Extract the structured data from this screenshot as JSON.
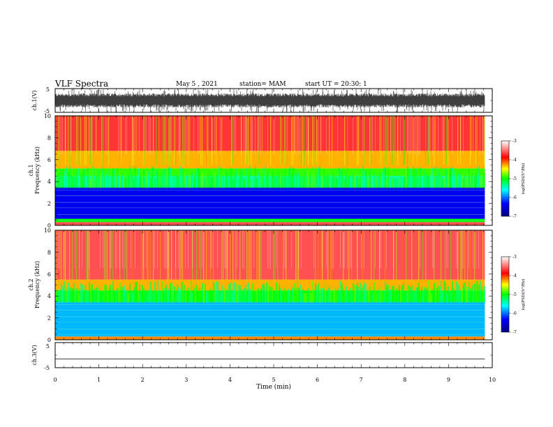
{
  "header": {
    "title": "VLF Spectra",
    "date": "May 5 , 2021",
    "station": "station= MAM",
    "start": "start UT = 20:30: 1"
  },
  "chart_data": [
    {
      "type": "line",
      "ylabel": "ch.1(V)",
      "ylim": [
        -5,
        5
      ],
      "yticks": [
        "5",
        "-5"
      ],
      "description_series": "dense voltage trace, roughly -3 to 3 V with spikes to ±5",
      "signal_range": [
        -3,
        3
      ]
    },
    {
      "type": "heatmap",
      "ylabel_channel": "ch.1",
      "ylabel": "Frequency (kHz)",
      "ylim": [
        0,
        10
      ],
      "yticks": [
        "0",
        "2",
        "4",
        "6",
        "8",
        "10"
      ],
      "colorbar": {
        "label": "log(PSD)(V²/Hz)",
        "ticks": [
          "-3",
          "-4",
          "-5",
          "-6",
          "-7"
        ],
        "range": [
          -7,
          -3
        ],
        "colors": [
          "#000080",
          "#0000ff",
          "#00ffff",
          "#00ff00",
          "#ffff00",
          "#ff0000",
          "#ffffff"
        ]
      },
      "bands": [
        {
          "fmin": 0.0,
          "fmax": 0.3,
          "level": -3.6
        },
        {
          "fmin": 0.3,
          "fmax": 0.6,
          "level": -5.0
        },
        {
          "fmin": 0.6,
          "fmax": 3.5,
          "level": -6.4
        },
        {
          "fmin": 3.5,
          "fmax": 4.5,
          "level": -5.4
        },
        {
          "fmin": 4.5,
          "fmax": 5.2,
          "level": -4.9
        },
        {
          "fmin": 5.2,
          "fmax": 6.8,
          "level": -4.3
        },
        {
          "fmin": 6.8,
          "fmax": 10.0,
          "level": -3.7
        }
      ]
    },
    {
      "type": "heatmap",
      "ylabel_channel": "ch.2",
      "ylabel": "Frequency (kHz)",
      "ylim": [
        0,
        10
      ],
      "yticks": [
        "0",
        "2",
        "4",
        "6",
        "8",
        "10"
      ],
      "colorbar": {
        "label": "log(PSD)(V²/Hz)",
        "ticks": [
          "-3",
          "-4",
          "-5",
          "-6",
          "-7"
        ],
        "range": [
          -7,
          -3
        ],
        "colors": [
          "#000080",
          "#0000ff",
          "#00ffff",
          "#00ff00",
          "#ffff00",
          "#ff0000",
          "#ffffff"
        ]
      },
      "bands": [
        {
          "fmin": 0.0,
          "fmax": 0.3,
          "level": -4.2
        },
        {
          "fmin": 0.3,
          "fmax": 3.5,
          "level": -5.8
        },
        {
          "fmin": 3.5,
          "fmax": 4.5,
          "level": -5.0
        },
        {
          "fmin": 4.5,
          "fmax": 5.5,
          "level": -4.3
        },
        {
          "fmin": 5.5,
          "fmax": 10.0,
          "level": -3.6
        }
      ]
    },
    {
      "type": "line",
      "ylabel": "ch.3(V)",
      "ylim": [
        -5,
        5
      ],
      "yticks": [
        "5",
        "-5"
      ],
      "constant_value": -1.5
    }
  ],
  "xaxis": {
    "label": "Time (min)",
    "ticks": [
      "0",
      "1",
      "2",
      "3",
      "4",
      "5",
      "6",
      "7",
      "8",
      "9",
      "10"
    ],
    "xlim": [
      0,
      10
    ],
    "data_end": 9.83
  }
}
